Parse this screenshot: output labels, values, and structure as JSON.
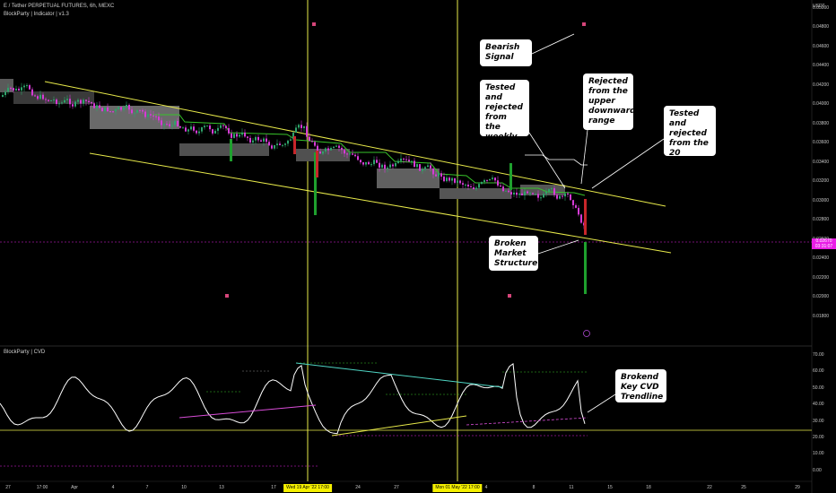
{
  "header": {
    "symbol_line": "E / Tether PERPETUAL FUTURES, 6h, MEXC",
    "indicator_line": "BlockParty | Indicator | v1.3",
    "sub_indicator": "BlockParty | CVD"
  },
  "price_axis": {
    "currency": "USDT",
    "ticks": [
      "0.05000",
      "0.04800",
      "0.04600",
      "0.04400",
      "0.04200",
      "0.04000",
      "0.03800",
      "0.03600",
      "0.03400",
      "0.03200",
      "0.03000",
      "0.02800",
      "0.02600",
      "0.02400",
      "0.02200",
      "0.02000",
      "0.01800"
    ],
    "current_price": "0.02670",
    "countdown": "03:31:07"
  },
  "cvd_axis": {
    "ticks": [
      "70.00",
      "60.00",
      "50.00",
      "40.00",
      "30.00",
      "20.00",
      "10.00",
      "0.00"
    ]
  },
  "time_axis": {
    "ticks": [
      "27",
      "17:00",
      "Apr",
      "4",
      "7",
      "10",
      "13",
      "17",
      "21",
      "24",
      "27",
      "4",
      "8",
      "11",
      "15",
      "18",
      "22",
      "25",
      "29"
    ],
    "highlights": [
      "Wed 19 Apr '22   17:00",
      "Mon 01 May '22   17:00"
    ]
  },
  "callouts": {
    "bearish_signal": "Bearish\nSignal",
    "weekly_pivot": "Tested and\nrejected\nfrom the\nweekly\npivot",
    "upper_range": "Rejected\nfrom the\nupper\ndownward\nrange",
    "ema": "Tested and\nrejected\nfrom the\n20 D.EMA\nyet again",
    "market_structure": "Broken\nMarket\nStructure",
    "cvd_trendline": "Brokend\nKey CVD\nTrendline"
  },
  "colors": {
    "background": "#000000",
    "channel": "#e8ea4a",
    "ema": "#37c22a",
    "candle_up": "#2fa36b",
    "candle_down": "#d63bd6",
    "signal_green": "#1fa02e",
    "signal_red": "#c8262a",
    "cvd_line": "#ffffff",
    "cvd_trend_pink": "#d94dd8",
    "cvd_trend_cyan": "#4fd6c4",
    "cvd_trend_yellow": "#e8ea4a",
    "price_line": "#e91ee6"
  }
}
